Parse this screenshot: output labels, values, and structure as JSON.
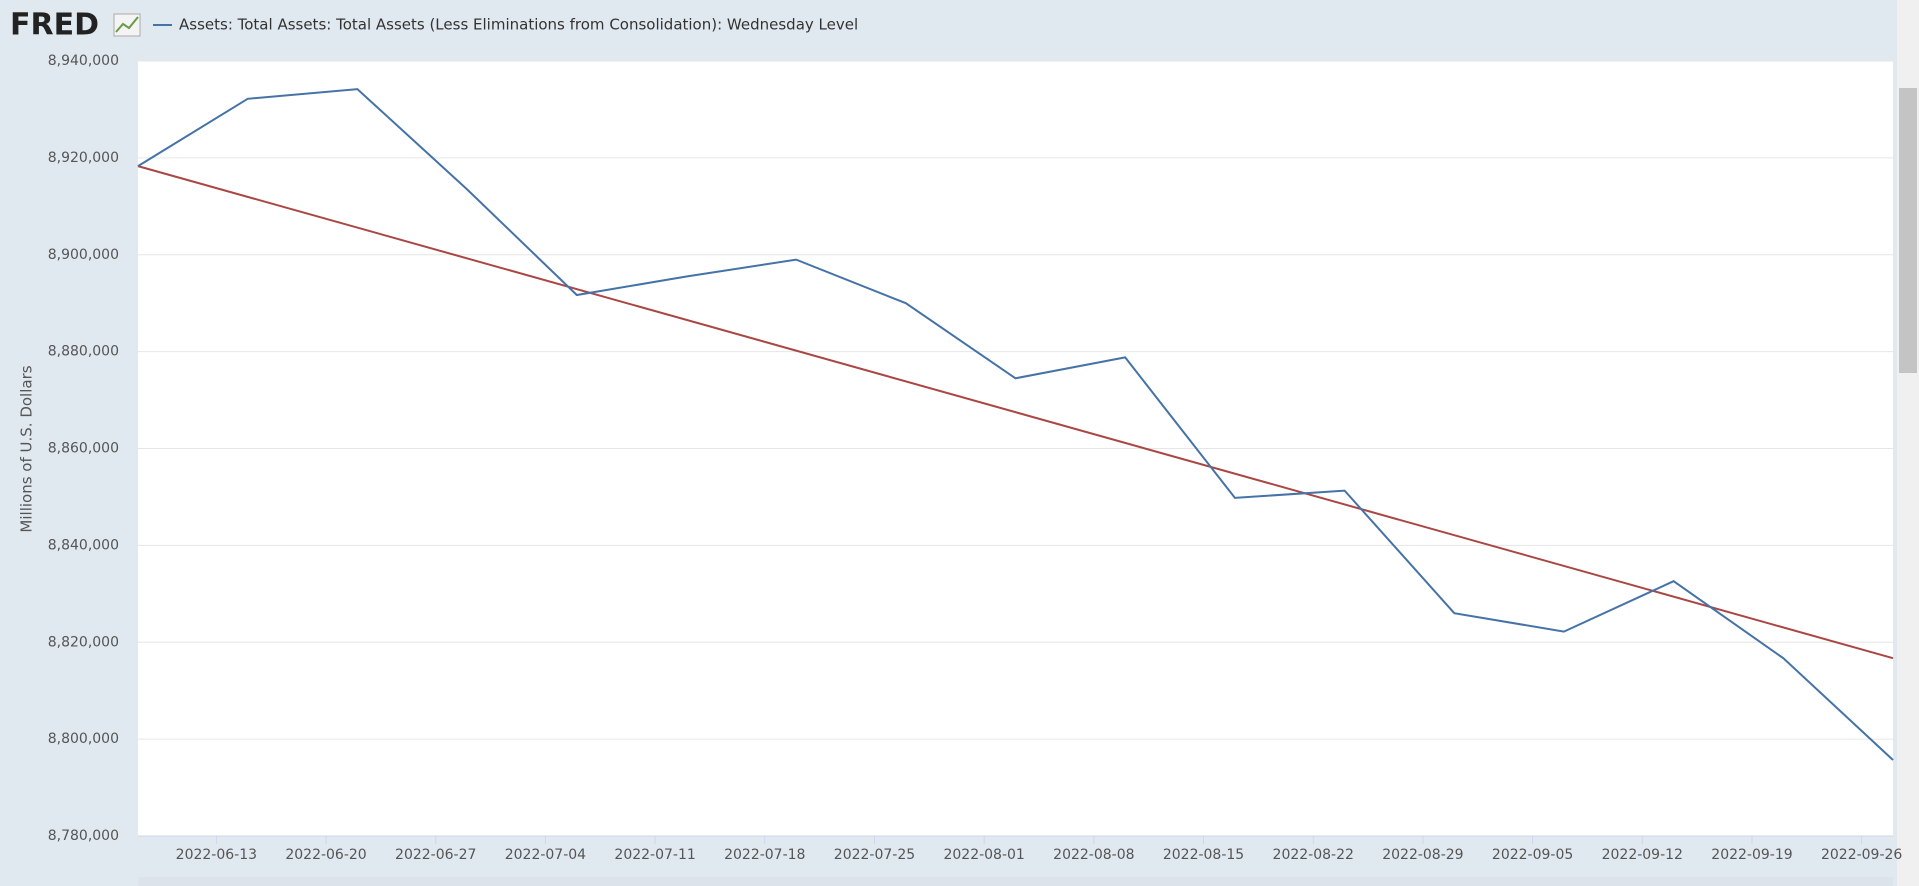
{
  "logo": "FRED",
  "chart_data": {
    "type": "line",
    "y_label": "Millions of U.S. Dollars",
    "x": [
      "2022-06-08",
      "2022-06-15",
      "2022-06-22",
      "2022-06-29",
      "2022-07-06",
      "2022-07-13",
      "2022-07-20",
      "2022-07-27",
      "2022-08-03",
      "2022-08-10",
      "2022-08-17",
      "2022-08-24",
      "2022-08-31",
      "2022-09-07",
      "2022-09-14",
      "2022-09-21",
      "2022-09-28"
    ],
    "series": [
      {
        "name": "Assets: Total Assets: Total Assets (Less Eliminations from Consolidation): Wednesday Level",
        "color": "#4572a7",
        "values": [
          8918300,
          8932200,
          8934200,
          8913500,
          8891700,
          8895500,
          8899000,
          8890000,
          8874500,
          8878800,
          8849800,
          8851300,
          8826000,
          8822200,
          8832600,
          8816700,
          8795700
        ]
      }
    ],
    "trend": {
      "color": "#aa4643",
      "x": [
        "2022-06-08",
        "2022-09-28"
      ],
      "values": [
        8918300,
        8816700
      ]
    },
    "xlim": [
      "2022-06-08",
      "2022-09-28"
    ],
    "xticks": [
      "2022-06-13",
      "2022-06-20",
      "2022-06-27",
      "2022-07-04",
      "2022-07-11",
      "2022-07-18",
      "2022-07-25",
      "2022-08-01",
      "2022-08-08",
      "2022-08-15",
      "2022-08-22",
      "2022-08-29",
      "2022-09-05",
      "2022-09-12",
      "2022-09-19",
      "2022-09-26"
    ],
    "ylim": [
      8780000,
      8940000
    ],
    "yticks": [
      {
        "value": 8780000,
        "label": "8,780,000"
      },
      {
        "value": 8800000,
        "label": "8,800,000"
      },
      {
        "value": 8820000,
        "label": "8,820,000"
      },
      {
        "value": 8840000,
        "label": "8,840,000"
      },
      {
        "value": 8860000,
        "label": "8,860,000"
      },
      {
        "value": 8880000,
        "label": "8,880,000"
      },
      {
        "value": 8900000,
        "label": "8,900,000"
      },
      {
        "value": 8920000,
        "label": "8,920,000"
      },
      {
        "value": 8940000,
        "label": "8,940,000"
      }
    ],
    "grid": true
  }
}
